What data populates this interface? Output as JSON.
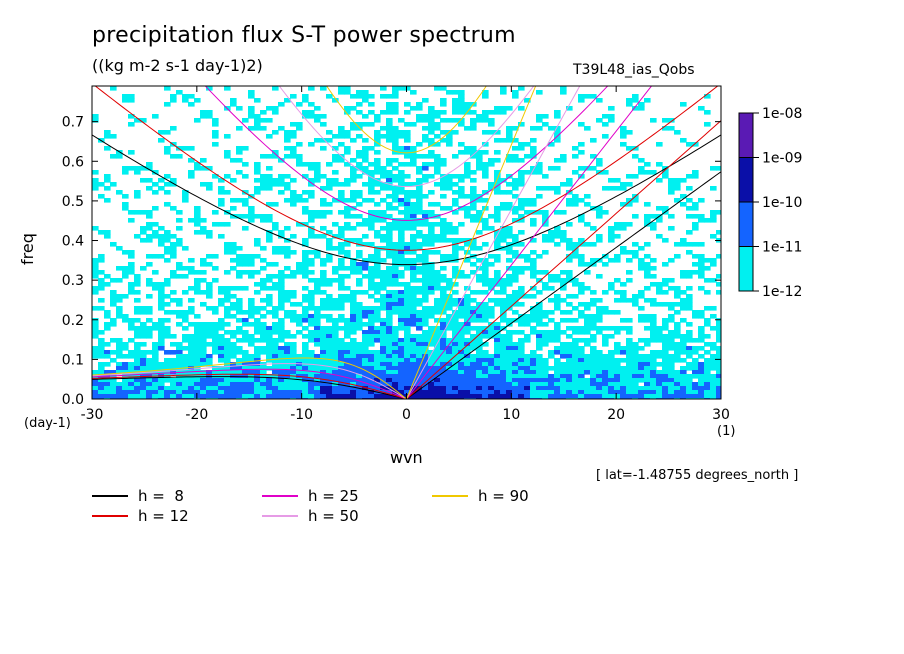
{
  "title": "precipitation flux S-T power spectrum",
  "subtitle": "((kg m-2 s-1 day-1)2)",
  "dataset_label": "T39L48_ias_Qobs",
  "latitude_note": "[ lat=-1.48755 degrees_north ]",
  "chart_data": {
    "type": "heatmap",
    "xlabel": "wvn",
    "ylabel": "freq",
    "y_unit": "(day-1)",
    "x_unit": "(1)",
    "xlim": [
      -30,
      30
    ],
    "ylim": [
      0,
      0.79
    ],
    "x_ticks": [
      -30,
      -20,
      -10,
      0,
      10,
      20,
      30
    ],
    "x_tick_labels": [
      "-30",
      "-20",
      "-10",
      "0",
      "10",
      "20",
      "30"
    ],
    "y_ticks": [
      0.0,
      0.1,
      0.2,
      0.3,
      0.4,
      0.5,
      0.6,
      0.7
    ],
    "y_tick_labels": [
      "0.0",
      "0.1",
      "0.2",
      "0.3",
      "0.4",
      "0.5",
      "0.6",
      "0.7"
    ],
    "colorbar": {
      "labels": [
        "1e-08",
        "1e-09",
        "1e-10",
        "1e-11",
        "1e-12"
      ],
      "colors": [
        "#5a1ab4",
        "#0a0fa8",
        "#1464ff",
        "#00f0f0"
      ]
    },
    "dispersion_curves": [
      {
        "label": "h =  8",
        "h": 8,
        "color": "#000000"
      },
      {
        "label": "h = 12",
        "h": 12,
        "color": "#e00000"
      },
      {
        "label": "h = 25",
        "h": 25,
        "color": "#e000c8"
      },
      {
        "label": "h = 50",
        "h": 50,
        "color": "#e69be6"
      },
      {
        "label": "h = 90",
        "h": 90,
        "color": "#f0c800"
      }
    ]
  }
}
